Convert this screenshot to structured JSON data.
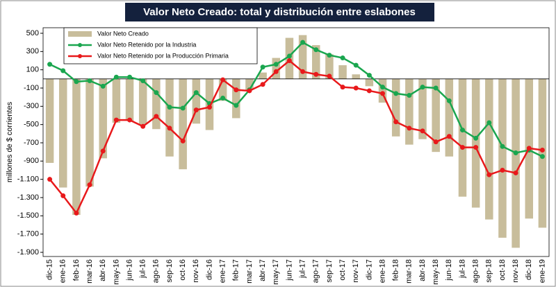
{
  "chart_data": {
    "type": "bar-line",
    "title": "Valor Neto Creado: total y distribución entre eslabones",
    "y_label": "millones de $ corrientes",
    "categories": [
      "dic-15",
      "ene-16",
      "feb-16",
      "mar-16",
      "abr-16",
      "may-16",
      "jun-16",
      "jul-16",
      "ago-16",
      "sep-16",
      "oct-16",
      "nov-16",
      "dic-16",
      "ene-17",
      "feb-17",
      "mar-17",
      "abr-17",
      "may-17",
      "jun-17",
      "jul-17",
      "ago-17",
      "sep-17",
      "oct-17",
      "nov-17",
      "dic-17",
      "ene-18",
      "feb-18",
      "mar-18",
      "abr-18",
      "may-18",
      "jun-18",
      "jul-18",
      "ago-18",
      "sep-18",
      "oct-18",
      "nov-18",
      "dic-18",
      "ene-19"
    ],
    "series": [
      {
        "name": "Valor Neto Creado",
        "type": "bar",
        "color": "#c8bd9b",
        "values": [
          -920,
          -1190,
          -1490,
          -1180,
          -870,
          -480,
          -460,
          -500,
          -550,
          -850,
          -990,
          -490,
          -560,
          -240,
          -430,
          -120,
          70,
          230,
          450,
          480,
          370,
          270,
          150,
          50,
          -80,
          -260,
          -630,
          -720,
          -660,
          -800,
          -850,
          -1290,
          -1410,
          -1540,
          -1740,
          -1850,
          -1530,
          -1630
        ]
      },
      {
        "name": "Valor Neto Retenido por la Industria",
        "type": "line",
        "color": "#1aa64f",
        "values": [
          160,
          90,
          -30,
          -20,
          -80,
          20,
          20,
          -20,
          -150,
          -310,
          -320,
          -150,
          -270,
          -210,
          -290,
          -120,
          130,
          160,
          250,
          400,
          320,
          260,
          230,
          150,
          40,
          -90,
          -160,
          -180,
          -90,
          -100,
          -240,
          -560,
          -650,
          -480,
          -740,
          -810,
          -780,
          -850
        ]
      },
      {
        "name": "Valor Neto Retenido por la Producción Primaria",
        "type": "line",
        "color": "#e8191b",
        "values": [
          -1100,
          -1280,
          -1470,
          -1160,
          -790,
          -450,
          -450,
          -520,
          -410,
          -540,
          -680,
          -340,
          -310,
          -10,
          -120,
          -130,
          -60,
          80,
          200,
          80,
          50,
          30,
          -90,
          -100,
          -130,
          -160,
          -470,
          -540,
          -570,
          -690,
          -630,
          -750,
          -750,
          -1050,
          -1000,
          -1030,
          -760,
          -780
        ]
      }
    ],
    "ylim": [
      -1900,
      500
    ],
    "yticks": [
      500,
      300,
      100,
      -100,
      -300,
      -500,
      -700,
      -900,
      {
        "value": -1100,
        "label": "-1.100"
      },
      {
        "value": -1300,
        "label": "-1.300"
      },
      {
        "value": -1500,
        "label": "-1.500"
      },
      {
        "value": -1700,
        "label": "-1.700"
      },
      {
        "value": -1900,
        "label": "-1.900"
      }
    ],
    "grid": false,
    "legend": "top-left"
  }
}
